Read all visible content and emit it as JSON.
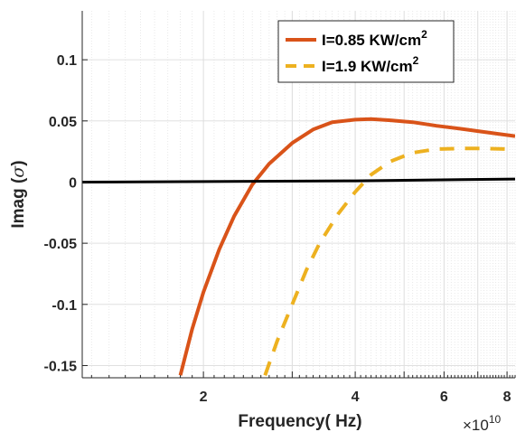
{
  "chart_data": {
    "type": "line",
    "xlabel": "Frequency( Hz)",
    "ylabel_text": "Imag (",
    "ylabel_symbol": "σ",
    "ylabel_close": ")",
    "x_scale": "log",
    "x_multiplier": {
      "base": "×10",
      "exponent": "10"
    },
    "xlim": [
      1.15,
      8.3
    ],
    "ylim": [
      -0.16,
      0.14
    ],
    "x_ticks": [
      {
        "value": 2,
        "label": "2"
      },
      {
        "value": 4,
        "label": "4"
      },
      {
        "value": 6,
        "label": "6"
      },
      {
        "value": 8,
        "label": "8"
      }
    ],
    "y_ticks": [
      {
        "value": 0.1,
        "label": "0.1"
      },
      {
        "value": 0.05,
        "label": "0.05"
      },
      {
        "value": 0,
        "label": "0"
      },
      {
        "value": -0.05,
        "label": "-0.05"
      },
      {
        "value": -0.1,
        "label": "-0.1"
      },
      {
        "value": -0.15,
        "label": "-0.15"
      }
    ],
    "grid": true,
    "legend_position": "top-right",
    "series": [
      {
        "name": "I=0.85 KW/cm",
        "name_sup": "2",
        "color": "#D95319",
        "style": "solid",
        "points": [
          [
            1.8,
            -0.158
          ],
          [
            1.9,
            -0.12
          ],
          [
            2.0,
            -0.09
          ],
          [
            2.15,
            -0.055
          ],
          [
            2.3,
            -0.028
          ],
          [
            2.5,
            -0.002
          ],
          [
            2.7,
            0.015
          ],
          [
            3.0,
            0.032
          ],
          [
            3.3,
            0.043
          ],
          [
            3.6,
            0.049
          ],
          [
            4.0,
            0.051
          ],
          [
            4.3,
            0.0515
          ],
          [
            4.7,
            0.0505
          ],
          [
            5.2,
            0.049
          ],
          [
            5.8,
            0.046
          ],
          [
            6.5,
            0.0435
          ],
          [
            7.2,
            0.041
          ],
          [
            8.3,
            0.0375
          ]
        ]
      },
      {
        "name": "I=1.9 KW/cm",
        "name_sup": "2",
        "color": "#EDB120",
        "style": "dashed",
        "points": [
          [
            2.65,
            -0.158
          ],
          [
            2.8,
            -0.13
          ],
          [
            3.0,
            -0.1
          ],
          [
            3.2,
            -0.072
          ],
          [
            3.4,
            -0.05
          ],
          [
            3.7,
            -0.026
          ],
          [
            4.0,
            -0.008
          ],
          [
            4.3,
            0.006
          ],
          [
            4.7,
            0.017
          ],
          [
            5.2,
            0.024
          ],
          [
            5.8,
            0.027
          ],
          [
            6.5,
            0.0275
          ],
          [
            7.2,
            0.0275
          ],
          [
            8.0,
            0.027
          ]
        ]
      },
      {
        "name": "",
        "color": "#000000",
        "style": "solid",
        "points": [
          [
            1.15,
            0.0
          ],
          [
            4.0,
            0.001
          ],
          [
            8.3,
            0.0025
          ]
        ]
      }
    ]
  }
}
